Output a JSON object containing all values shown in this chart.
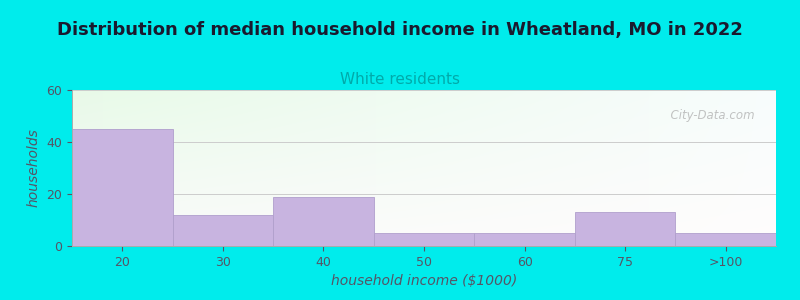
{
  "title": "Distribution of median household income in Wheatland, MO in 2022",
  "subtitle": "White residents",
  "xlabel": "household income ($1000)",
  "ylabel": "households",
  "categories": [
    "20",
    "30",
    "40",
    "50",
    "60",
    "75",
    ">100"
  ],
  "values": [
    45,
    12,
    19,
    5,
    5,
    13,
    5
  ],
  "bar_color": "#c8b4e0",
  "bar_edgecolor": "#b09fcc",
  "background_color": "#00ecec",
  "title_fontsize": 13,
  "title_color": "#1a1a2e",
  "subtitle_fontsize": 11,
  "subtitle_color": "#00aaaa",
  "ylabel_color": "#555566",
  "xlabel_color": "#555566",
  "tick_color": "#555566",
  "ylim": [
    0,
    60
  ],
  "yticks": [
    0,
    20,
    40,
    60
  ],
  "grid_color": "#cccccc",
  "watermark": "  City-Data.com",
  "plot_bg_left": "#e8f5e8",
  "plot_bg_right": "#f8ffff"
}
